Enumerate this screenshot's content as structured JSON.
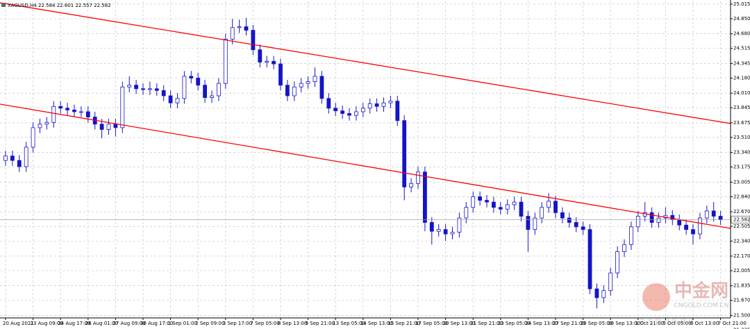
{
  "chart_data": {
    "type": "candlestick",
    "title": "XAGUSD,H4 22.584 22.601 22.557 22.582",
    "categories": [
      "20 Aug 2021",
      null,
      null,
      null,
      "23 Aug 09:00",
      null,
      null,
      null,
      "24 Aug 17:00",
      null,
      null,
      null,
      "26 Aug 01:00",
      null,
      null,
      null,
      "27 Aug 09:00",
      null,
      null,
      null,
      "30 Aug 17:00",
      null,
      null,
      null,
      "1 Sep 01:00",
      null,
      null,
      null,
      "2 Sep 09:00",
      null,
      null,
      null,
      "3 Sep 17:00",
      null,
      null,
      null,
      "7 Sep 05:00",
      null,
      null,
      null,
      "8 Sep 13:00",
      null,
      null,
      null,
      "9 Sep 21:00",
      null,
      null,
      null,
      "13 Sep 05:00",
      null,
      null,
      null,
      "14 Sep 13:00",
      null,
      null,
      null,
      "15 Sep 21:00",
      null,
      null,
      null,
      "17 Sep 05:00",
      null,
      null,
      null,
      "20 Sep 13:00",
      null,
      null,
      null,
      "21 Sep 21:00",
      null,
      null,
      null,
      "23 Sep 05:00",
      null,
      null,
      null,
      "24 Sep 13:00",
      null,
      null,
      null,
      "27 Sep 21:00",
      null,
      null,
      null,
      "29 Sep 05:00",
      null,
      null,
      null,
      "30 Sep 13:00",
      null,
      null,
      null,
      "1 Oct 21:00",
      null,
      null,
      null,
      "5 Oct 05:00",
      null,
      null,
      null,
      "6 Oct 13:00",
      null,
      null,
      null,
      "7 Oct 21:00"
    ],
    "open": [
      23.25,
      23.3,
      23.25,
      23.18,
      23.4,
      23.62,
      23.66,
      23.68,
      23.86,
      23.84,
      23.82,
      23.8,
      23.8,
      23.74,
      23.66,
      23.6,
      23.66,
      23.62,
      24.08,
      24.1,
      24.06,
      24.05,
      24.06,
      24.04,
      23.98,
      23.9,
      23.95,
      24.2,
      24.18,
      24.1,
      23.96,
      23.98,
      24.12,
      24.62,
      24.75,
      24.76,
      24.72,
      24.5,
      24.36,
      24.37,
      24.34,
      24.1,
      23.98,
      24.08,
      24.12,
      24.14,
      24.2,
      23.95,
      23.84,
      23.81,
      23.78,
      23.76,
      23.8,
      23.84,
      23.89,
      23.86,
      23.9,
      23.92,
      23.7,
      22.95,
      22.99,
      23.12,
      22.55,
      22.45,
      22.47,
      22.42,
      22.44,
      22.6,
      22.72,
      22.84,
      22.8,
      22.78,
      22.72,
      22.7,
      22.75,
      22.78,
      22.62,
      22.47,
      22.6,
      22.72,
      22.79,
      22.66,
      22.6,
      22.55,
      22.5,
      22.47,
      21.8,
      21.7,
      21.78,
      21.98,
      22.22,
      22.3,
      22.5,
      22.62,
      22.66,
      22.55,
      22.6,
      22.63,
      22.58,
      22.52,
      22.47,
      22.42,
      22.6,
      22.68,
      22.62
    ],
    "high": [
      23.36,
      23.36,
      23.31,
      23.46,
      23.68,
      23.72,
      23.74,
      23.92,
      23.92,
      23.9,
      23.88,
      23.86,
      23.86,
      23.8,
      23.72,
      23.72,
      23.72,
      24.14,
      24.2,
      24.16,
      24.12,
      24.14,
      24.12,
      24.1,
      24.04,
      24.01,
      24.26,
      24.26,
      24.24,
      24.16,
      24.04,
      24.18,
      24.68,
      24.85,
      24.84,
      24.86,
      24.78,
      24.56,
      24.43,
      24.43,
      24.4,
      24.16,
      24.14,
      24.18,
      24.2,
      24.3,
      24.26,
      24.01,
      23.9,
      23.87,
      23.84,
      23.86,
      23.9,
      23.95,
      23.95,
      23.96,
      23.98,
      23.98,
      23.76,
      23.05,
      23.18,
      23.18,
      22.61,
      22.53,
      22.53,
      22.5,
      22.66,
      22.78,
      22.9,
      22.9,
      22.86,
      22.84,
      22.78,
      22.81,
      22.84,
      22.84,
      22.68,
      22.66,
      22.78,
      22.88,
      22.85,
      22.72,
      22.66,
      22.61,
      22.56,
      22.53,
      21.86,
      21.84,
      22.04,
      22.28,
      22.36,
      22.56,
      22.68,
      22.78,
      22.72,
      22.66,
      22.72,
      22.69,
      22.64,
      22.58,
      22.53,
      22.66,
      22.74,
      22.78,
      22.68
    ],
    "low": [
      23.19,
      23.19,
      23.12,
      23.12,
      23.34,
      23.56,
      23.6,
      23.62,
      23.78,
      23.76,
      23.74,
      23.74,
      23.68,
      23.6,
      23.5,
      23.54,
      23.52,
      23.56,
      24.02,
      24.0,
      23.99,
      23.99,
      23.98,
      23.92,
      23.84,
      23.84,
      23.89,
      24.12,
      24.04,
      23.9,
      23.9,
      23.92,
      24.06,
      24.56,
      24.69,
      24.66,
      24.44,
      24.3,
      24.3,
      24.28,
      24.04,
      23.92,
      23.92,
      24.02,
      24.06,
      24.08,
      23.89,
      23.78,
      23.75,
      23.72,
      23.7,
      23.7,
      23.74,
      23.78,
      23.8,
      23.8,
      23.84,
      23.64,
      22.8,
      22.89,
      22.93,
      22.45,
      22.3,
      22.39,
      22.34,
      22.36,
      22.38,
      22.54,
      22.66,
      22.74,
      22.72,
      22.66,
      22.64,
      22.64,
      22.69,
      22.56,
      22.22,
      22.41,
      22.54,
      22.66,
      22.6,
      22.54,
      22.49,
      22.44,
      22.41,
      21.74,
      21.58,
      21.64,
      21.72,
      21.92,
      22.16,
      22.24,
      22.44,
      22.56,
      22.49,
      22.49,
      22.54,
      22.52,
      22.46,
      22.41,
      22.3,
      22.36,
      22.54,
      22.56,
      22.52
    ],
    "close": [
      23.3,
      23.25,
      23.18,
      23.4,
      23.62,
      23.66,
      23.68,
      23.86,
      23.84,
      23.82,
      23.8,
      23.8,
      23.74,
      23.66,
      23.6,
      23.66,
      23.62,
      24.08,
      24.1,
      24.06,
      24.05,
      24.06,
      24.04,
      23.98,
      23.9,
      23.95,
      24.2,
      24.18,
      24.1,
      23.96,
      23.98,
      24.12,
      24.62,
      24.75,
      24.76,
      24.72,
      24.5,
      24.36,
      24.37,
      24.34,
      24.1,
      23.98,
      24.08,
      24.12,
      24.14,
      24.2,
      23.95,
      23.84,
      23.81,
      23.78,
      23.76,
      23.8,
      23.84,
      23.89,
      23.86,
      23.9,
      23.92,
      23.7,
      22.95,
      22.99,
      23.12,
      22.55,
      22.45,
      22.47,
      22.42,
      22.44,
      22.6,
      22.72,
      22.84,
      22.8,
      22.78,
      22.72,
      22.7,
      22.75,
      22.78,
      22.62,
      22.47,
      22.6,
      22.72,
      22.79,
      22.66,
      22.6,
      22.55,
      22.5,
      22.47,
      21.8,
      21.7,
      21.78,
      21.98,
      22.22,
      22.3,
      22.5,
      22.62,
      22.66,
      22.55,
      22.6,
      22.63,
      22.58,
      22.52,
      22.47,
      22.42,
      22.6,
      22.68,
      22.62,
      22.58
    ],
    "up_color": "#ffffff",
    "down_color": "#1414c8",
    "edge_color": "#1414c8",
    "ylim": [
      21.472,
      25.046
    ],
    "yticks": [
      25.015,
      {
        "value": 24.85,
        "label": "24.850"
      },
      {
        "value": 24.68,
        "label": "24.680"
      },
      24.515,
      24.345,
      {
        "value": 24.18,
        "label": "24.180"
      },
      {
        "value": 24.01,
        "label": "24.010"
      },
      23.845,
      23.675,
      {
        "value": 23.51,
        "label": "23.510"
      },
      {
        "value": 23.34,
        "label": "23.340"
      },
      23.175,
      23.005,
      {
        "value": 22.84,
        "label": "22.840"
      },
      {
        "value": 22.67,
        "label": "22.670"
      },
      22.505,
      {
        "value": 22.34,
        "label": "22.340"
      },
      {
        "value": 22.17,
        "label": "22.170"
      },
      22.005,
      21.835,
      {
        "value": 21.67,
        "label": "21.670"
      },
      {
        "value": 21.5,
        "label": "21.500"
      },
      21.335
    ],
    "grid": true,
    "last_price": 22.582,
    "trendlines": [
      {
        "color": "#ff0000",
        "start": 23.886,
        "end": 22.483
      },
      {
        "color": "#ff0000",
        "start": 25.031,
        "end": 23.667
      }
    ]
  },
  "watermark": {
    "brand": "中金网",
    "site": "CNGOLD.COM.CN",
    "tagline": "中 文 财 经 新 媒 体"
  }
}
